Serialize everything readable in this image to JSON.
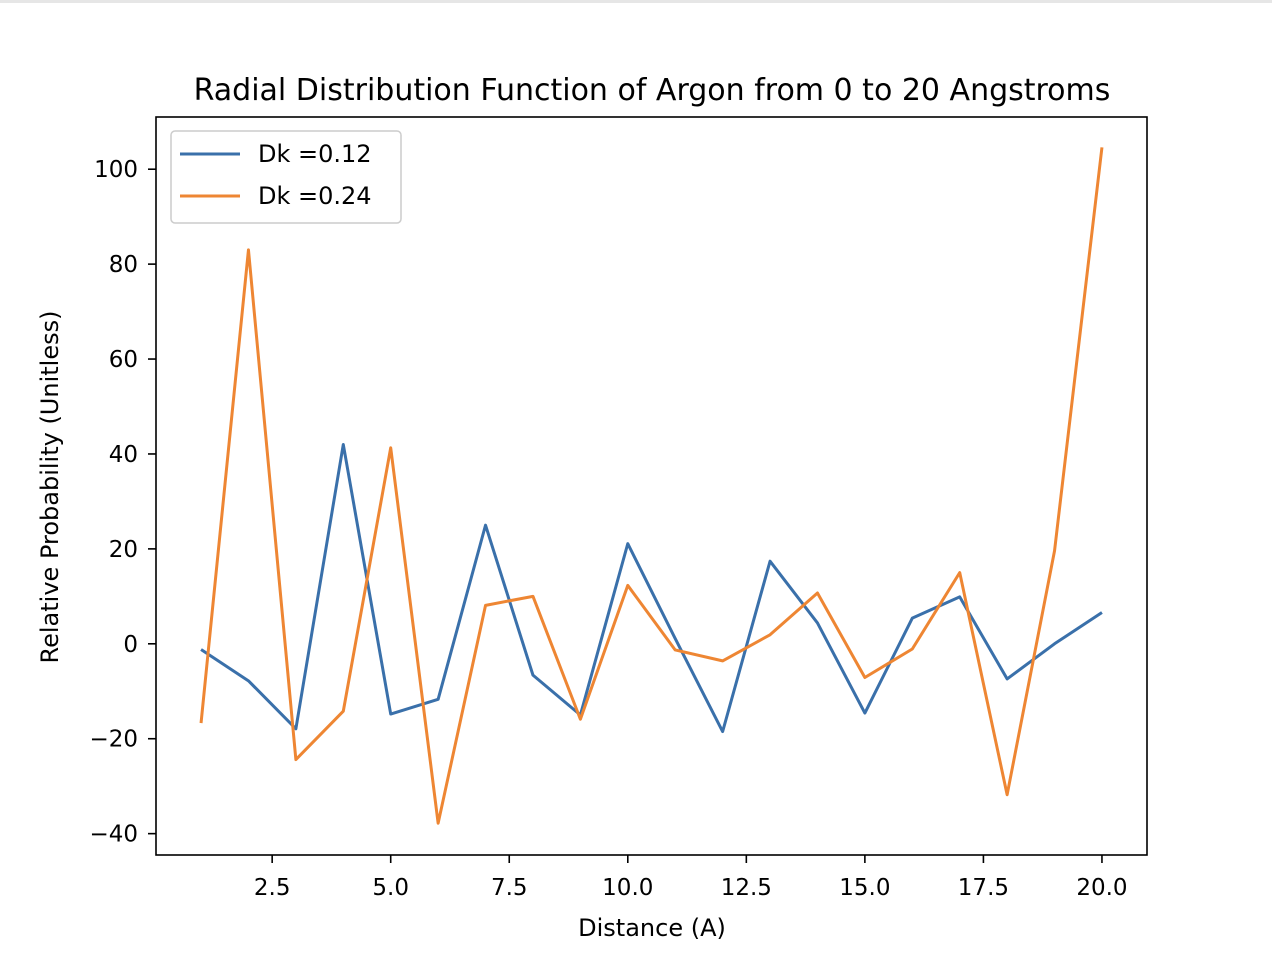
{
  "chart_data": {
    "type": "line",
    "title": "Radial Distribution Function of Argon from 0 to 20 Angstroms",
    "xlabel": "Distance (A)",
    "ylabel": "Relative Probability (Unitless)",
    "xlim": [
      0.05,
      20.95
    ],
    "ylim": [
      -44.5,
      111
    ],
    "xticks": [
      2.5,
      5.0,
      7.5,
      10.0,
      12.5,
      15.0,
      17.5,
      20.0
    ],
    "xtick_labels": [
      "2.5",
      "5.0",
      "7.5",
      "10.0",
      "12.5",
      "15.0",
      "17.5",
      "20.0"
    ],
    "yticks": [
      -40,
      -20,
      0,
      20,
      40,
      60,
      80,
      100
    ],
    "ytick_labels": [
      "−40",
      "−20",
      "0",
      "20",
      "40",
      "60",
      "80",
      "100"
    ],
    "grid": false,
    "legend_position": "top-left",
    "x": [
      1,
      2,
      3,
      4,
      5,
      6,
      7,
      8,
      9,
      10,
      11,
      12,
      13,
      14,
      15,
      16,
      17,
      18,
      19,
      20
    ],
    "series": [
      {
        "name": "Dk =0.12",
        "color": "#3a70aa",
        "values": [
          -1.2,
          -7.8,
          -17.9,
          42.0,
          -14.8,
          -11.7,
          25.0,
          -6.6,
          -15.0,
          21.1,
          1.1,
          -18.5,
          17.4,
          4.4,
          -14.6,
          5.4,
          9.9,
          -7.4,
          0.0,
          6.6
        ]
      },
      {
        "name": "Dk =0.24",
        "color": "#ee8633",
        "values": [
          -16.7,
          83.0,
          -24.4,
          -14.2,
          41.3,
          -37.8,
          8.1,
          10.0,
          -15.9,
          12.3,
          -1.3,
          -3.6,
          1.9,
          10.7,
          -7.1,
          -1.1,
          15.0,
          -31.8,
          19.6,
          104.6
        ]
      }
    ]
  }
}
